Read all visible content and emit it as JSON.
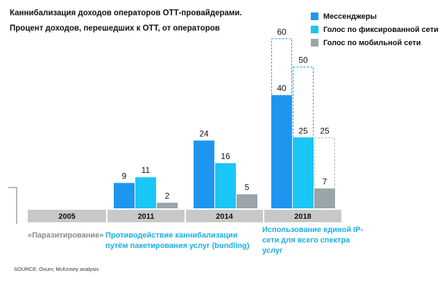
{
  "header": {
    "title": "Каннибализация доходов операторов ОТТ-провайдерами.",
    "subtitle": "Процент доходов, перешедших к ОТТ, от операторов"
  },
  "colors": {
    "messengers": "#1e96f0",
    "fixed": "#1ac6f5",
    "mobile": "#9aa5aa",
    "axis_band": "#c8c8c8",
    "phase_grey": "#8a8a8a",
    "phase_blue": "#19aee8"
  },
  "chart_data": {
    "type": "bar",
    "categories": [
      "2005",
      "2011",
      "2014",
      "2018"
    ],
    "series": [
      {
        "name": "Мессенджеры",
        "key": "messengers",
        "values": [
          null,
          9,
          24,
          40
        ],
        "forecast": [
          null,
          null,
          null,
          60
        ]
      },
      {
        "name": "Голос по фиксированной сети",
        "key": "fixed",
        "values": [
          null,
          11,
          16,
          25
        ],
        "forecast": [
          null,
          null,
          null,
          50
        ]
      },
      {
        "name": "Голос по мобильной сети",
        "key": "mobile",
        "values": [
          null,
          2,
          5,
          7
        ],
        "forecast": [
          null,
          null,
          null,
          25
        ]
      }
    ],
    "ylim": [
      0,
      60
    ],
    "xlabel": "",
    "ylabel": ""
  },
  "phases": [
    {
      "text": "«Паразитирование»",
      "style": "grey"
    },
    {
      "text": "Противодействие каннибализации путём пакетирования услуг (bundling)",
      "style": "blue"
    },
    {
      "text": "Использование единой IP-сети для всего спектра услуг",
      "style": "blue"
    }
  ],
  "source": "SOURCE: Ovum; McKinsey analysis"
}
